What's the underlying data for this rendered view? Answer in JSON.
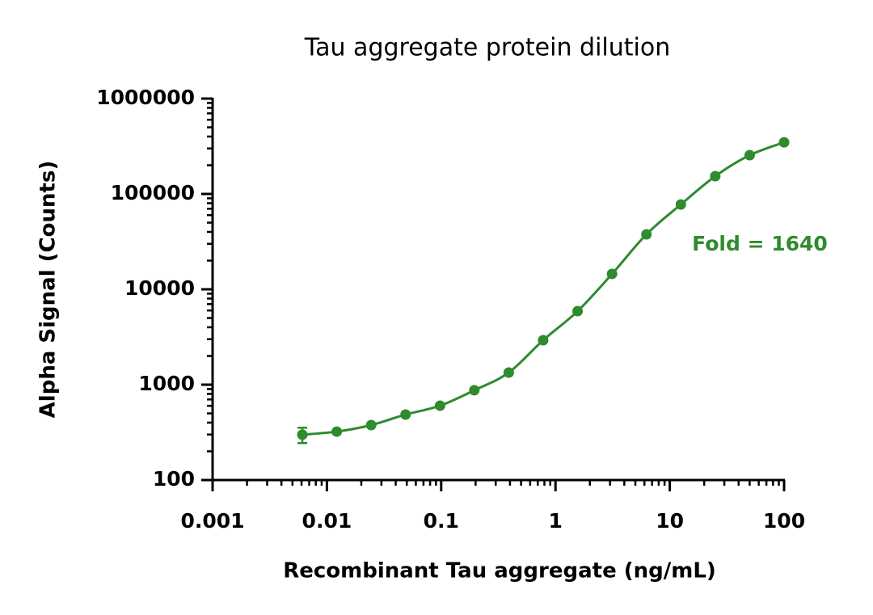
{
  "chart_data": {
    "type": "scatter",
    "title": "Tau aggregate protein dilution",
    "x_label": "Recombinant Tau aggregate (ng/mL)",
    "y_label": "Alpha Signal (Counts)",
    "annotation": "Fold = 1640",
    "x_scale": "log",
    "y_scale": "log",
    "minor_ticks": true,
    "fit_curve": true,
    "xlim": [
      0.001,
      100
    ],
    "xticks": [
      0.001,
      0.01,
      0.1,
      1,
      10,
      100
    ],
    "ylim": [
      100,
      1000000
    ],
    "yticks": [
      100,
      1000,
      10000,
      100000,
      1000000
    ],
    "series": [
      {
        "name": "Tau aggregate",
        "color": "#2e8b2e",
        "x": [
          0.0061,
          0.0122,
          0.0244,
          0.0488,
          0.0977,
          0.195,
          0.39,
          0.78,
          1.56,
          3.125,
          6.25,
          12.5,
          25,
          50,
          100
        ],
        "values": [
          299,
          322,
          377,
          486,
          602,
          874,
          1340,
          2925,
          5900,
          14500,
          37700,
          77600,
          153700,
          255000,
          348000
        ],
        "errors": [
          55,
          null,
          null,
          null,
          null,
          null,
          null,
          null,
          null,
          null,
          null,
          null,
          null,
          null,
          null
        ]
      }
    ]
  }
}
